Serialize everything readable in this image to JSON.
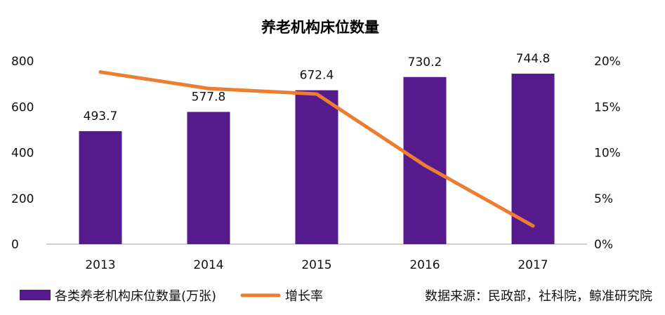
{
  "chart_data": {
    "type": "bar",
    "title": "养老机构床位数量",
    "categories": [
      "2013",
      "2014",
      "2015",
      "2016",
      "2017"
    ],
    "series": [
      {
        "name": "各类养老机构床位数量(万张)",
        "type": "bar",
        "axis": "left",
        "values": [
          493.7,
          577.8,
          672.4,
          730.2,
          744.8
        ],
        "labels": [
          "493.7",
          "577.8",
          "672.4",
          "730.2",
          "744.8"
        ],
        "color": "#551A8B"
      },
      {
        "name": "增长率",
        "type": "line",
        "axis": "right",
        "values": [
          0.188,
          0.17,
          0.164,
          0.086,
          0.02
        ],
        "color": "#ED7D31"
      }
    ],
    "y_left": {
      "min": 0,
      "max": 800,
      "ticks": [
        "0",
        "200",
        "400",
        "600",
        "800"
      ]
    },
    "y_right": {
      "min": 0,
      "max": 0.2,
      "ticks": [
        "0%",
        "5%",
        "10%",
        "15%",
        "20%"
      ]
    },
    "xlabel": "",
    "ylabel": "",
    "grid": false,
    "legend_position": "bottom-left"
  },
  "source": "数据来源：民政部，社科院，鲸准研究院",
  "colors": {
    "axis": "#BFBFBF"
  }
}
